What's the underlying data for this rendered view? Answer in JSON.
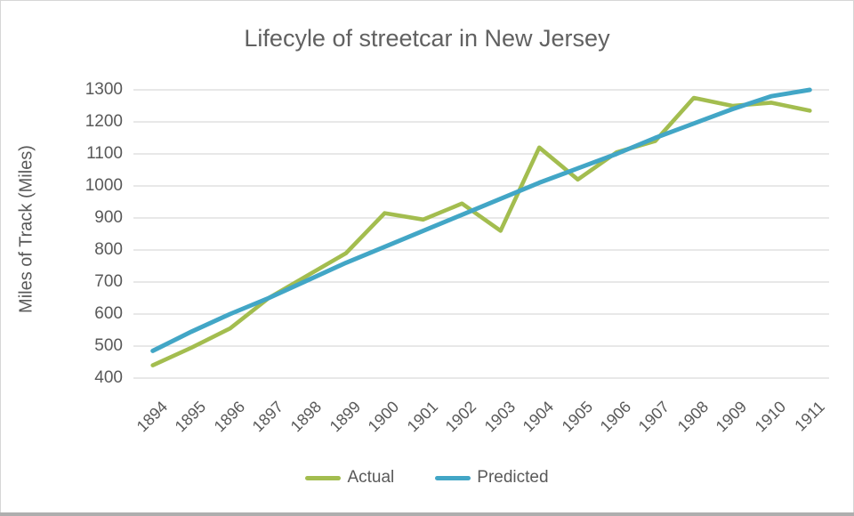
{
  "title": "Lifecyle of streetcar in New Jersey",
  "y_axis_title": "Miles of Track (Miles)",
  "legend": [
    {
      "label": "Actual",
      "color": "#a3bd4f"
    },
    {
      "label": "Predicted",
      "color": "#42a6c6"
    }
  ],
  "colors": {
    "text": "#595959",
    "title_text": "#616161",
    "gridline": "#d9d9d9",
    "frame_border": "#d6d6d6",
    "bottom_bar": "#aeaeae",
    "background": "#ffffff"
  },
  "chart_data": {
    "type": "line",
    "title": "Lifecyle of streetcar in New Jersey",
    "xlabel": "",
    "ylabel": "Miles of Track (Miles)",
    "x": [
      1894,
      1895,
      1896,
      1897,
      1898,
      1899,
      1900,
      1901,
      1902,
      1903,
      1904,
      1905,
      1906,
      1907,
      1908,
      1909,
      1910,
      1911
    ],
    "series": [
      {
        "name": "Actual",
        "color": "#a3bd4f",
        "values": [
          440,
          495,
          555,
          650,
          720,
          790,
          915,
          895,
          945,
          860,
          1120,
          1020,
          1105,
          1140,
          1275,
          1250,
          1260,
          1235
        ]
      },
      {
        "name": "Predicted",
        "color": "#42a6c6",
        "values": [
          485,
          545,
          600,
          650,
          705,
          760,
          810,
          860,
          910,
          960,
          1010,
          1055,
          1100,
          1150,
          1195,
          1240,
          1280,
          1300
        ]
      }
    ],
    "ylim": [
      400,
      1300
    ],
    "y_ticks": [
      400,
      500,
      600,
      700,
      800,
      900,
      1000,
      1100,
      1200,
      1300
    ],
    "grid": "horizontal-only",
    "legend_position": "bottom"
  }
}
